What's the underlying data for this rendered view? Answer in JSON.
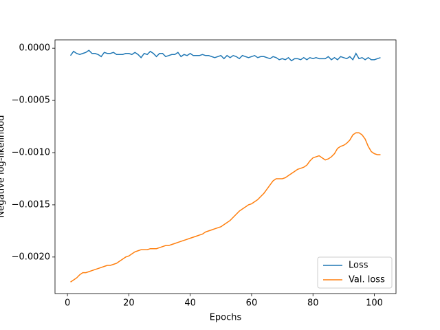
{
  "chart_data": {
    "type": "line",
    "xlabel": "Epochs",
    "ylabel": "Negative log-likelihood",
    "x": [
      1,
      2,
      3,
      4,
      5,
      6,
      7,
      8,
      9,
      10,
      11,
      12,
      13,
      14,
      15,
      16,
      17,
      18,
      19,
      20,
      21,
      22,
      23,
      24,
      25,
      26,
      27,
      28,
      29,
      30,
      31,
      32,
      33,
      34,
      35,
      36,
      37,
      38,
      39,
      40,
      41,
      42,
      43,
      44,
      45,
      46,
      47,
      48,
      49,
      50,
      51,
      52,
      53,
      54,
      55,
      56,
      57,
      58,
      59,
      60,
      61,
      62,
      63,
      64,
      65,
      66,
      67,
      68,
      69,
      70,
      71,
      72,
      73,
      74,
      75,
      76,
      77,
      78,
      79,
      80,
      81,
      82,
      83,
      84,
      85,
      86,
      87,
      88,
      89,
      90,
      91,
      92,
      93,
      94,
      95,
      96,
      97,
      98,
      99,
      100,
      101,
      102
    ],
    "series": [
      {
        "name": "Loss",
        "color": "#1f77b4",
        "values": [
          -7e-05,
          -3e-05,
          -5e-05,
          -6e-05,
          -5e-05,
          -4e-05,
          -2e-05,
          -5e-05,
          -5e-05,
          -6e-05,
          -8e-05,
          -4e-05,
          -5e-05,
          -5e-05,
          -4e-05,
          -6e-05,
          -6e-05,
          -6e-05,
          -5e-05,
          -5e-05,
          -6e-05,
          -4e-05,
          -6e-05,
          -9e-05,
          -5e-05,
          -6e-05,
          -3e-05,
          -5e-05,
          -8e-05,
          -5e-05,
          -5e-05,
          -8e-05,
          -7e-05,
          -6e-05,
          -6e-05,
          -4e-05,
          -8e-05,
          -6e-05,
          -7e-05,
          -5e-05,
          -7e-05,
          -7e-05,
          -7e-05,
          -6e-05,
          -7e-05,
          -7e-05,
          -8e-05,
          -9e-05,
          -8e-05,
          -7e-05,
          -0.0001,
          -7e-05,
          -9e-05,
          -7e-05,
          -8e-05,
          -0.0001,
          -7e-05,
          -8e-05,
          -9e-05,
          -8e-05,
          -7e-05,
          -9e-05,
          -8e-05,
          -8e-05,
          -9e-05,
          -0.0001,
          -8e-05,
          -9e-05,
          -0.00011,
          -0.0001,
          -0.00011,
          -9e-05,
          -0.00012,
          -0.0001,
          -0.0001,
          -0.00011,
          -9e-05,
          -0.00011,
          -9e-05,
          -0.0001,
          -9e-05,
          -0.0001,
          -0.0001,
          -0.0001,
          -8e-05,
          -0.00011,
          -9e-05,
          -0.00011,
          -8e-05,
          -9e-05,
          -0.0001,
          -8e-05,
          -0.00011,
          -5e-05,
          -0.0001,
          -9e-05,
          -0.00011,
          -9e-05,
          -0.00011,
          -0.00011,
          -0.0001,
          -9e-05
        ]
      },
      {
        "name": "Val. loss",
        "color": "#ff7f0e",
        "values": [
          -0.00224,
          -0.00222,
          -0.0022,
          -0.00217,
          -0.00215,
          -0.00215,
          -0.00214,
          -0.00213,
          -0.00212,
          -0.00211,
          -0.0021,
          -0.00209,
          -0.00208,
          -0.00208,
          -0.00207,
          -0.00206,
          -0.00204,
          -0.00202,
          -0.002,
          -0.00199,
          -0.00197,
          -0.00195,
          -0.00194,
          -0.00193,
          -0.00193,
          -0.00193,
          -0.00192,
          -0.00192,
          -0.00192,
          -0.00191,
          -0.0019,
          -0.00189,
          -0.00189,
          -0.00188,
          -0.00187,
          -0.00186,
          -0.00185,
          -0.00184,
          -0.00183,
          -0.00182,
          -0.00181,
          -0.0018,
          -0.00179,
          -0.00178,
          -0.00176,
          -0.00175,
          -0.00174,
          -0.00173,
          -0.00172,
          -0.00171,
          -0.00169,
          -0.00167,
          -0.00165,
          -0.00162,
          -0.00159,
          -0.00156,
          -0.00154,
          -0.00152,
          -0.0015,
          -0.00149,
          -0.00147,
          -0.00145,
          -0.00142,
          -0.00139,
          -0.00135,
          -0.00131,
          -0.00127,
          -0.00125,
          -0.00125,
          -0.00125,
          -0.00124,
          -0.00122,
          -0.0012,
          -0.00118,
          -0.00116,
          -0.00115,
          -0.00114,
          -0.00112,
          -0.00108,
          -0.00105,
          -0.00104,
          -0.00103,
          -0.00105,
          -0.00107,
          -0.00106,
          -0.00104,
          -0.00101,
          -0.00096,
          -0.00094,
          -0.00093,
          -0.00091,
          -0.00088,
          -0.00083,
          -0.00081,
          -0.00081,
          -0.00083,
          -0.00087,
          -0.00094,
          -0.00099,
          -0.00101,
          -0.00102,
          -0.00102
        ]
      }
    ],
    "xlim": [
      -4.05,
      107.05
    ],
    "ylim": [
      -0.00235,
      8e-05
    ],
    "xticks": [
      0,
      20,
      40,
      60,
      80,
      100
    ],
    "yticks": [
      {
        "value": 0,
        "label": "0.0000"
      },
      {
        "value": -0.0005,
        "label": "−0.0005"
      },
      {
        "value": -0.001,
        "label": "−0.0010"
      },
      {
        "value": -0.0015,
        "label": "−0.0015"
      },
      {
        "value": -0.002,
        "label": "−0.0020"
      }
    ],
    "legend": "lower right"
  }
}
